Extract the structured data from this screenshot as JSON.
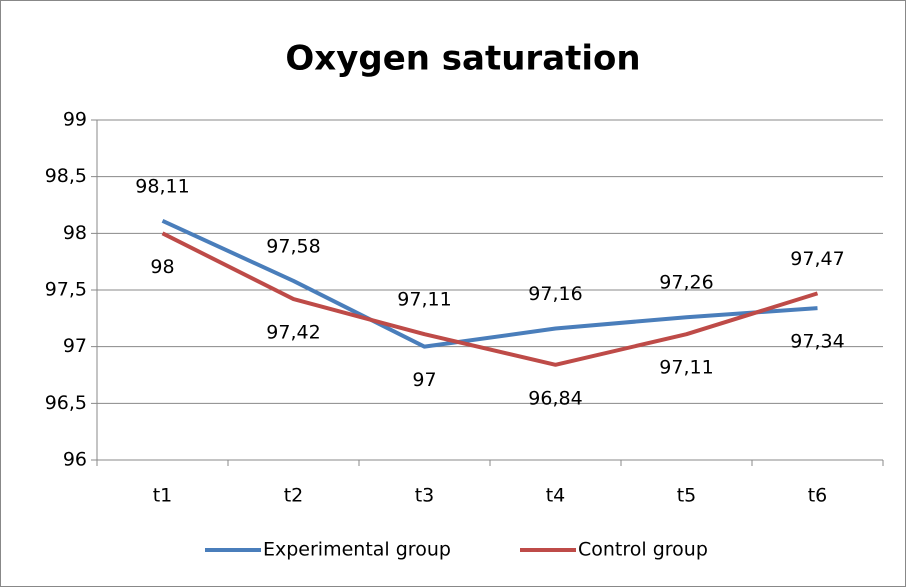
{
  "chart_data": {
    "type": "line",
    "title": "Oxygen saturation",
    "categories": [
      "t1",
      "t2",
      "t3",
      "t4",
      "t5",
      "t6"
    ],
    "series": [
      {
        "name": "Experimental group",
        "color": "#4a7ebb",
        "values": [
          98.11,
          97.58,
          97,
          97.16,
          97.26,
          97.34
        ],
        "value_labels": [
          "98,11",
          "97,58",
          "97",
          "97,16",
          "97,26",
          "97,34"
        ]
      },
      {
        "name": "Control group",
        "color": "#be4b48",
        "values": [
          98,
          97.42,
          97.11,
          96.84,
          97.11,
          97.47
        ],
        "value_labels": [
          "98",
          "97,42",
          "97,11",
          "96,84",
          "97,11",
          "97,47"
        ]
      }
    ],
    "ylim": [
      96,
      99
    ],
    "yticks": [
      96,
      {
        "value": 96.5,
        "label": "96,5"
      },
      97,
      {
        "value": 97.5,
        "label": "97,5"
      },
      98,
      {
        "value": 98.5,
        "label": "98,5"
      },
      99
    ],
    "grid": true,
    "legend": "bottom"
  }
}
